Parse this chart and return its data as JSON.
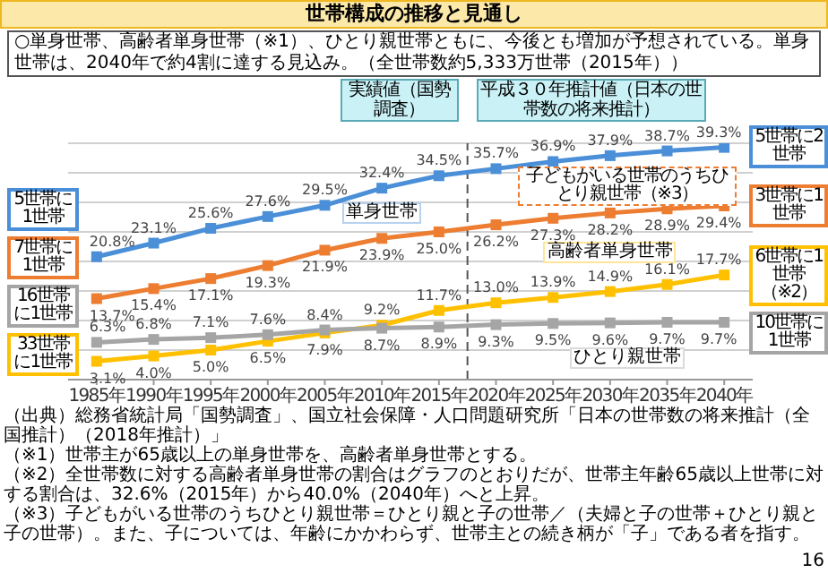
{
  "chart_data": {
    "type": "line",
    "title": "世帯構成の推移と見通し",
    "subtitle": "○単身世帯、高齢者単身世帯（※1）、ひとり親世帯ともに、今後とも増加が予想されている。単身世帯は、2040年で約4割に達する見込み。（全世帯数約5,333万世帯（2015年））",
    "x": [
      1985,
      1990,
      1995,
      2000,
      2005,
      2010,
      2015,
      2020,
      2025,
      2030,
      2035,
      2040
    ],
    "xlim": [
      1982.5,
      2042.5
    ],
    "xticks": [
      {
        "value": 1985,
        "label": "1985年"
      },
      {
        "value": 1990,
        "label": "1990年"
      },
      {
        "value": 1995,
        "label": "1995年"
      },
      {
        "value": 2000,
        "label": "2000年"
      },
      {
        "value": 2005,
        "label": "2005年"
      },
      {
        "value": 2010,
        "label": "2010年"
      },
      {
        "value": 2015,
        "label": "2015年"
      },
      {
        "value": 2020,
        "label": "2020年"
      },
      {
        "value": 2025,
        "label": "2025年"
      },
      {
        "value": 2030,
        "label": "2030年"
      },
      {
        "value": 2035,
        "label": "2035年"
      },
      {
        "value": 2040,
        "label": "2040年"
      }
    ],
    "ylim": [
      0,
      40
    ],
    "yticks": [
      {
        "value": 0,
        "label": null
      },
      {
        "value": 5,
        "label": null
      },
      {
        "value": 10,
        "label": null
      },
      {
        "value": 15,
        "label": null
      },
      {
        "value": 20,
        "label": null
      },
      {
        "value": 25,
        "label": null
      },
      {
        "value": 30,
        "label": null
      },
      {
        "value": 35,
        "label": null
      },
      {
        "value": 40,
        "label": null
      }
    ],
    "tick_labels": "x",
    "grid": "y",
    "marker": "square",
    "series": [
      {
        "name": "単身世帯",
        "color": "#4a8fd8",
        "values": [
          20.8,
          23.1,
          25.6,
          27.6,
          29.5,
          32.4,
          34.5,
          35.7,
          36.9,
          37.9,
          38.7,
          39.3
        ],
        "value_labels": [
          "20.8%",
          "23.1%",
          "25.6%",
          "27.6%",
          "29.5%",
          "32.4%",
          "34.5%",
          "35.7%",
          "36.9%",
          "37.9%",
          "38.7%",
          "39.3%"
        ]
      },
      {
        "name": "子どもがいる世帯のうちひとり親世帯（※3）",
        "color": "#ed7d31",
        "values": [
          13.7,
          15.4,
          17.1,
          19.3,
          21.9,
          23.9,
          25.0,
          26.2,
          27.3,
          28.2,
          28.9,
          29.4
        ],
        "value_labels": [
          "13.7%",
          "15.4%",
          "17.1%",
          "19.3%",
          "21.9%",
          "23.9%",
          "25.0%",
          "26.2%",
          "27.3%",
          "28.2%",
          "28.9%",
          "29.4%"
        ]
      },
      {
        "name": "高齢者単身世帯",
        "color": "#ffc000",
        "values": [
          3.1,
          4.0,
          5.0,
          6.5,
          7.9,
          9.2,
          11.7,
          13.0,
          13.9,
          14.9,
          16.1,
          17.7
        ],
        "value_labels": [
          "3.1%",
          "4.0%",
          "5.0%",
          "6.5%",
          "7.9%",
          "9.2%",
          "11.7%",
          "13.0%",
          "13.9%",
          "14.9%",
          "16.1%",
          "17.7%"
        ]
      },
      {
        "name": "ひとり親世帯",
        "color": "#a5a5a5",
        "values": [
          6.3,
          6.8,
          7.1,
          7.6,
          8.4,
          8.7,
          8.9,
          9.3,
          9.5,
          9.6,
          9.7,
          9.7
        ],
        "value_labels": [
          "6.3%",
          "6.8%",
          "7.1%",
          "7.6%",
          "8.4%",
          "8.7%",
          "8.9%",
          "9.3%",
          "9.5%",
          "9.6%",
          "9.7%",
          "9.7%"
        ]
      }
    ],
    "ref_lines": [
      {
        "axis": "x",
        "value": 2017.5,
        "line_style": "dashed",
        "color": "#555555"
      }
    ],
    "annotations": [
      "実績値（国勢調査）",
      "平成３０年推計値（日本の世帯数の将来推計）",
      "5世帯に1世帯",
      "7世帯に1世帯",
      "16世帯に1世帯",
      "33世帯に1世帯",
      "5世帯に2世帯",
      "3世帯に1世帯",
      "6世帯に1世帯（※2）",
      "10世帯に1世帯",
      "（出典）総務省統計局「国勢調査」、国立社会保障・人口問題研究所「日本の世帯数の将来推計（全国推計）（2018年推計）」",
      "（※1）世帯主が65歳以上の単身世帯を、高齢者単身世帯とする。",
      "（※2）全世帯数に対する高齢者単身世帯の割合はグラフのとおりだが、世帯主年齢65歳以上世帯に対する割合は、32.6%（2015年）から40.0%（2040年）へと上昇。",
      "（※3）子どもがいる世帯のうちひとり親世帯＝ひとり親と子の世帯／（夫婦と子の世帯＋ひとり親と子の世帯）。また、子については、年齢にかかわらず、世帯主との続き柄が「子」である者を指す。",
      "16"
    ]
  }
}
